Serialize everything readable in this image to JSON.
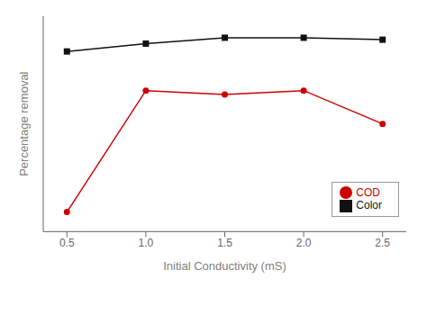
{
  "chart_data": {
    "type": "line",
    "x": [
      0.5,
      1.0,
      1.5,
      2.0,
      2.5
    ],
    "series": [
      {
        "name": "Color",
        "color": "#111111",
        "marker": "square",
        "values": [
          92,
          96,
          99,
          99,
          98
        ]
      },
      {
        "name": "COD",
        "color": "#cc0000",
        "marker": "circle",
        "values": [
          10,
          72,
          70,
          72,
          55
        ]
      }
    ],
    "xlabel": "Initial Conductivity (mS)",
    "ylabel": "Percentage removal",
    "xlim": [
      0.35,
      2.65
    ],
    "ylim": [
      0,
      110
    ],
    "xticks": [
      0.5,
      {
        "value": 1.0,
        "label": "1.0"
      },
      1.5,
      {
        "value": 2.0,
        "label": "2.0"
      },
      2.5
    ],
    "tick_labels": "x",
    "grid": false,
    "legend": "lower right"
  }
}
